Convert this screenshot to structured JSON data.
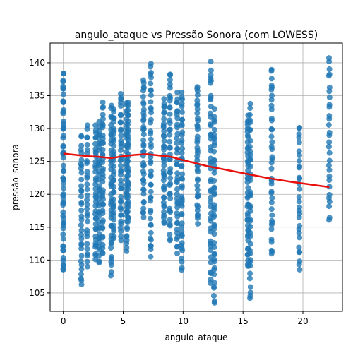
{
  "chart_data": {
    "type": "scatter",
    "title": "angulo_ataque vs Pressão Sonora (com LOWESS)",
    "xlabel": "angulo_ataque",
    "ylabel": "pressão_sonora",
    "xlim": [
      -1.1,
      23.3
    ],
    "ylim": [
      102.2,
      143.0
    ],
    "xticks": [
      0,
      5,
      10,
      15,
      20
    ],
    "yticks": [
      105,
      110,
      115,
      120,
      125,
      130,
      135,
      140
    ],
    "grid": true,
    "colors": {
      "points": "#1f77b4",
      "lowess": "#e8100c"
    },
    "clusters": [
      {
        "x": 0.0,
        "ymin": 108.0,
        "ymax": 138.7,
        "n": 60
      },
      {
        "x": 1.5,
        "ymin": 106.0,
        "ymax": 129.0,
        "n": 35
      },
      {
        "x": 2.0,
        "ymin": 109.0,
        "ymax": 130.5,
        "n": 30
      },
      {
        "x": 2.7,
        "ymin": 110.0,
        "ymax": 130.5,
        "n": 38
      },
      {
        "x": 3.0,
        "ymin": 109.5,
        "ymax": 131.0,
        "n": 38
      },
      {
        "x": 3.3,
        "ymin": 111.0,
        "ymax": 134.0,
        "n": 40
      },
      {
        "x": 4.0,
        "ymin": 107.5,
        "ymax": 133.5,
        "n": 40
      },
      {
        "x": 4.2,
        "ymin": 113.0,
        "ymax": 133.0,
        "n": 35
      },
      {
        "x": 4.8,
        "ymin": 113.0,
        "ymax": 135.3,
        "n": 40
      },
      {
        "x": 5.3,
        "ymin": 111.0,
        "ymax": 134.0,
        "n": 40
      },
      {
        "x": 5.4,
        "ymin": 115.5,
        "ymax": 134.0,
        "n": 35
      },
      {
        "x": 6.7,
        "ymin": 116.5,
        "ymax": 137.5,
        "n": 40
      },
      {
        "x": 7.3,
        "ymin": 110.5,
        "ymax": 140.0,
        "n": 45
      },
      {
        "x": 8.4,
        "ymin": 115.5,
        "ymax": 134.5,
        "n": 40
      },
      {
        "x": 8.9,
        "ymin": 113.0,
        "ymax": 138.7,
        "n": 40
      },
      {
        "x": 9.5,
        "ymin": 111.0,
        "ymax": 135.5,
        "n": 40
      },
      {
        "x": 9.9,
        "ymin": 108.5,
        "ymax": 135.5,
        "n": 45
      },
      {
        "x": 11.2,
        "ymin": 115.5,
        "ymax": 136.5,
        "n": 40
      },
      {
        "x": 12.3,
        "ymin": 106.5,
        "ymax": 140.2,
        "n": 45
      },
      {
        "x": 12.6,
        "ymin": 103.5,
        "ymax": 133.0,
        "n": 45
      },
      {
        "x": 15.4,
        "ymin": 109.0,
        "ymax": 132.0,
        "n": 45
      },
      {
        "x": 15.6,
        "ymin": 104.0,
        "ymax": 134.0,
        "n": 40
      },
      {
        "x": 17.4,
        "ymin": 110.5,
        "ymax": 139.0,
        "n": 40
      },
      {
        "x": 19.7,
        "ymin": 108.5,
        "ymax": 130.5,
        "n": 30
      },
      {
        "x": 22.2,
        "ymin": 116.0,
        "ymax": 141.0,
        "n": 30
      }
    ],
    "lowess": {
      "x": [
        0.0,
        2.0,
        3.0,
        4.0,
        5.0,
        6.0,
        7.0,
        8.0,
        9.0,
        10.0,
        12.0,
        15.6,
        17.0,
        19.0,
        22.2
      ],
      "y": [
        126.2,
        125.8,
        125.7,
        125.5,
        125.8,
        126.0,
        126.1,
        125.9,
        125.7,
        125.2,
        124.3,
        123.0,
        122.5,
        121.9,
        121.1
      ]
    }
  }
}
